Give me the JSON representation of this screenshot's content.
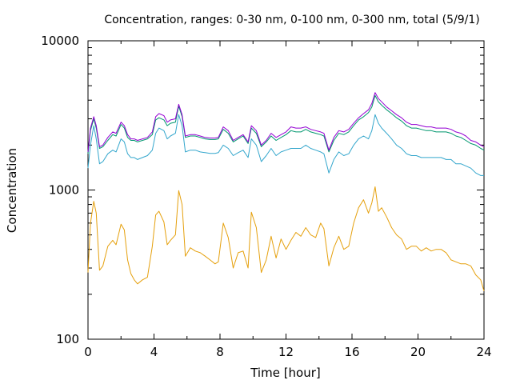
{
  "chart_data": {
    "type": "line",
    "title": "Concentration, ranges: 0-30 nm, 0-100 nm, 0-300 nm, total (5/9/1)",
    "xlabel": "Time [hour]",
    "ylabel": "Concentration",
    "xlim": [
      0,
      24
    ],
    "ylim": [
      100,
      10000
    ],
    "yscale": "log",
    "grid": false,
    "legend": "none",
    "x_ticks": [
      0,
      4,
      8,
      12,
      16,
      20,
      24
    ],
    "x_tick_labels": [
      "0",
      "4",
      "8",
      "12",
      "16",
      "20",
      "24"
    ],
    "y_ticks": [
      100,
      1000,
      10000
    ],
    "y_tick_labels": [
      "100",
      "1000",
      "10000"
    ],
    "colors": {
      "range_0_30": "#e5a00d",
      "range_0_100": "#33a6cc",
      "range_0_300": "#00966e",
      "total": "#9400d3"
    },
    "series": [
      {
        "key": "range_0_30",
        "color": "#e5a00d",
        "x": [
          0,
          0.15,
          0.35,
          0.5,
          0.7,
          0.9,
          1.2,
          1.5,
          1.7,
          2.0,
          2.2,
          2.4,
          2.6,
          2.8,
          3.0,
          3.3,
          3.6,
          3.9,
          4.1,
          4.3,
          4.6,
          4.8,
          5.0,
          5.3,
          5.5,
          5.7,
          5.9,
          6.2,
          6.5,
          6.8,
          7.1,
          7.4,
          7.7,
          7.9,
          8.2,
          8.5,
          8.8,
          9.1,
          9.4,
          9.7,
          9.9,
          10.2,
          10.5,
          10.8,
          11.1,
          11.4,
          11.7,
          12.0,
          12.3,
          12.6,
          12.9,
          13.2,
          13.5,
          13.8,
          14.1,
          14.3,
          14.6,
          14.9,
          15.2,
          15.5,
          15.8,
          16.1,
          16.4,
          16.7,
          17.0,
          17.2,
          17.4,
          17.6,
          17.8,
          18.1,
          18.4,
          18.7,
          19.0,
          19.3,
          19.6,
          19.9,
          20.2,
          20.5,
          20.8,
          21.1,
          21.4,
          21.7,
          22.0,
          22.3,
          22.6,
          22.9,
          23.2,
          23.5,
          23.8,
          24.0
        ],
        "y": [
          280,
          600,
          840,
          700,
          290,
          310,
          420,
          460,
          430,
          590,
          540,
          340,
          275,
          250,
          235,
          250,
          260,
          420,
          680,
          720,
          610,
          430,
          460,
          500,
          990,
          800,
          360,
          410,
          390,
          380,
          360,
          340,
          320,
          330,
          600,
          480,
          300,
          380,
          390,
          300,
          710,
          560,
          280,
          340,
          490,
          350,
          470,
          400,
          460,
          520,
          490,
          560,
          500,
          480,
          600,
          550,
          310,
          410,
          490,
          400,
          420,
          600,
          760,
          860,
          700,
          820,
          1050,
          720,
          760,
          660,
          560,
          500,
          470,
          400,
          420,
          420,
          390,
          410,
          390,
          400,
          400,
          380,
          340,
          330,
          320,
          320,
          310,
          270,
          250,
          210
        ]
      },
      {
        "key": "range_0_100",
        "color": "#33a6cc",
        "x": [
          0,
          0.15,
          0.35,
          0.5,
          0.7,
          0.9,
          1.2,
          1.5,
          1.7,
          2.0,
          2.2,
          2.4,
          2.6,
          2.8,
          3.0,
          3.3,
          3.6,
          3.9,
          4.1,
          4.3,
          4.6,
          4.8,
          5.0,
          5.3,
          5.5,
          5.7,
          5.9,
          6.2,
          6.5,
          6.8,
          7.1,
          7.4,
          7.7,
          7.9,
          8.2,
          8.5,
          8.8,
          9.1,
          9.4,
          9.7,
          9.9,
          10.2,
          10.5,
          10.8,
          11.1,
          11.4,
          11.7,
          12.0,
          12.3,
          12.6,
          12.9,
          13.2,
          13.5,
          13.8,
          14.1,
          14.3,
          14.6,
          14.9,
          15.2,
          15.5,
          15.8,
          16.1,
          16.4,
          16.7,
          17.0,
          17.2,
          17.4,
          17.6,
          17.8,
          18.1,
          18.4,
          18.7,
          19.0,
          19.3,
          19.6,
          19.9,
          20.2,
          20.5,
          20.8,
          21.1,
          21.4,
          21.7,
          22.0,
          22.3,
          22.6,
          22.9,
          23.2,
          23.5,
          23.8,
          24.0
        ],
        "y": [
          1400,
          2000,
          2700,
          2200,
          1500,
          1550,
          1750,
          1850,
          1800,
          2200,
          2100,
          1750,
          1650,
          1650,
          1600,
          1650,
          1700,
          1850,
          2400,
          2600,
          2500,
          2200,
          2300,
          2400,
          3200,
          2700,
          1800,
          1850,
          1850,
          1800,
          1780,
          1760,
          1760,
          1780,
          2000,
          1900,
          1700,
          1780,
          1850,
          1650,
          2200,
          2000,
          1550,
          1700,
          1900,
          1700,
          1800,
          1850,
          1900,
          1900,
          1900,
          2000,
          1900,
          1850,
          1800,
          1750,
          1300,
          1600,
          1800,
          1700,
          1750,
          2000,
          2200,
          2300,
          2200,
          2500,
          3200,
          2800,
          2600,
          2400,
          2200,
          2000,
          1900,
          1750,
          1700,
          1700,
          1650,
          1650,
          1650,
          1650,
          1650,
          1600,
          1600,
          1500,
          1500,
          1450,
          1400,
          1300,
          1250,
          1250
        ]
      },
      {
        "key": "range_0_300",
        "color": "#00966e",
        "x": [
          0,
          0.15,
          0.35,
          0.5,
          0.7,
          0.9,
          1.2,
          1.5,
          1.7,
          2.0,
          2.2,
          2.4,
          2.6,
          2.8,
          3.0,
          3.3,
          3.6,
          3.9,
          4.1,
          4.3,
          4.6,
          4.8,
          5.0,
          5.3,
          5.5,
          5.7,
          5.9,
          6.2,
          6.5,
          6.8,
          7.1,
          7.4,
          7.7,
          7.9,
          8.2,
          8.5,
          8.8,
          9.1,
          9.4,
          9.7,
          9.9,
          10.2,
          10.5,
          10.8,
          11.1,
          11.4,
          11.7,
          12.0,
          12.3,
          12.6,
          12.9,
          13.2,
          13.5,
          13.8,
          14.1,
          14.3,
          14.6,
          14.9,
          15.2,
          15.5,
          15.8,
          16.1,
          16.4,
          16.7,
          17.0,
          17.2,
          17.4,
          17.6,
          17.8,
          18.1,
          18.4,
          18.7,
          19.0,
          19.3,
          19.6,
          19.9,
          20.2,
          20.5,
          20.8,
          21.1,
          21.4,
          21.7,
          22.0,
          22.3,
          22.6,
          22.9,
          23.2,
          23.5,
          23.8,
          24.0
        ],
        "y": [
          1750,
          2500,
          3000,
          2600,
          1900,
          1950,
          2150,
          2350,
          2300,
          2750,
          2600,
          2250,
          2150,
          2150,
          2100,
          2150,
          2200,
          2350,
          2950,
          3050,
          2950,
          2700,
          2800,
          2850,
          3650,
          3100,
          2250,
          2300,
          2300,
          2250,
          2200,
          2180,
          2180,
          2200,
          2550,
          2400,
          2100,
          2200,
          2300,
          2050,
          2600,
          2400,
          1950,
          2100,
          2300,
          2150,
          2250,
          2350,
          2500,
          2450,
          2450,
          2550,
          2450,
          2400,
          2350,
          2300,
          1800,
          2150,
          2400,
          2350,
          2450,
          2700,
          2950,
          3100,
          3300,
          3600,
          4300,
          3900,
          3700,
          3450,
          3250,
          3050,
          2900,
          2700,
          2600,
          2600,
          2550,
          2500,
          2500,
          2450,
          2450,
          2450,
          2400,
          2300,
          2250,
          2150,
          2050,
          2000,
          1900,
          1850
        ]
      },
      {
        "key": "total",
        "color": "#9400d3",
        "x": [
          0,
          0.15,
          0.35,
          0.5,
          0.7,
          0.9,
          1.2,
          1.5,
          1.7,
          2.0,
          2.2,
          2.4,
          2.6,
          2.8,
          3.0,
          3.3,
          3.6,
          3.9,
          4.1,
          4.3,
          4.6,
          4.8,
          5.0,
          5.3,
          5.5,
          5.7,
          5.9,
          6.2,
          6.5,
          6.8,
          7.1,
          7.4,
          7.7,
          7.9,
          8.2,
          8.5,
          8.8,
          9.1,
          9.4,
          9.7,
          9.9,
          10.2,
          10.5,
          10.8,
          11.1,
          11.4,
          11.7,
          12.0,
          12.3,
          12.6,
          12.9,
          13.2,
          13.5,
          13.8,
          14.1,
          14.3,
          14.6,
          14.9,
          15.2,
          15.5,
          15.8,
          16.1,
          16.4,
          16.7,
          17.0,
          17.2,
          17.4,
          17.6,
          17.8,
          18.1,
          18.4,
          18.7,
          19.0,
          19.3,
          19.6,
          19.9,
          20.2,
          20.5,
          20.8,
          21.1,
          21.4,
          21.7,
          22.0,
          22.3,
          22.6,
          22.9,
          23.2,
          23.5,
          23.8,
          24.0
        ],
        "y": [
          1800,
          2600,
          3100,
          2700,
          1950,
          2000,
          2250,
          2450,
          2400,
          2850,
          2700,
          2350,
          2200,
          2200,
          2150,
          2200,
          2250,
          2450,
          3100,
          3250,
          3150,
          2850,
          2950,
          3000,
          3750,
          3200,
          2300,
          2350,
          2350,
          2300,
          2250,
          2230,
          2230,
          2250,
          2650,
          2500,
          2150,
          2250,
          2350,
          2100,
          2700,
          2500,
          2000,
          2150,
          2400,
          2250,
          2350,
          2450,
          2650,
          2600,
          2600,
          2650,
          2550,
          2500,
          2450,
          2400,
          1850,
          2250,
          2500,
          2450,
          2550,
          2800,
          3050,
          3250,
          3450,
          3800,
          4500,
          4100,
          3900,
          3600,
          3400,
          3200,
          3050,
          2850,
          2750,
          2750,
          2700,
          2650,
          2650,
          2600,
          2600,
          2600,
          2550,
          2450,
          2400,
          2300,
          2150,
          2100,
          2000,
          1950
        ]
      }
    ]
  }
}
